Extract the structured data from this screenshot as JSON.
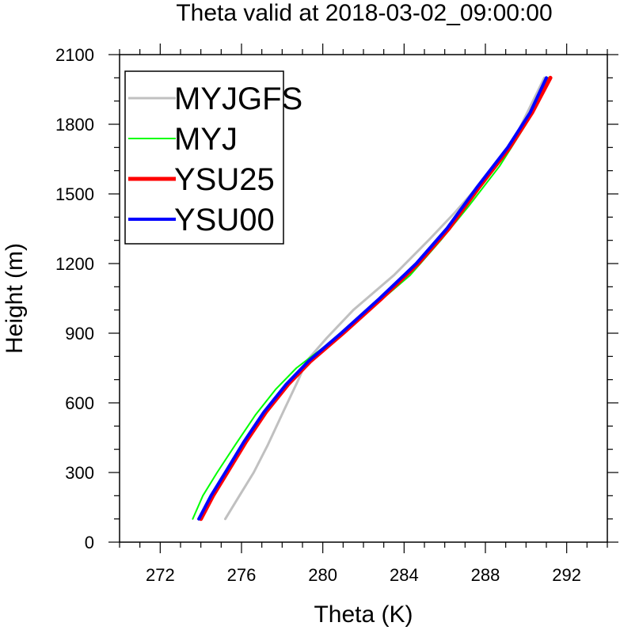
{
  "chart_data": {
    "type": "line",
    "title": "Theta valid at 2018-03-02_09:00:00",
    "xlabel": "Theta (K)",
    "ylabel": "Height (m)",
    "xlim": [
      270,
      294
    ],
    "ylim": [
      0,
      2100
    ],
    "xticks": [
      272,
      276,
      280,
      284,
      288,
      292
    ],
    "yticks": [
      0,
      300,
      600,
      900,
      1200,
      1500,
      1800,
      2100
    ],
    "xtick_labels": [
      "272",
      "276",
      "280",
      "284",
      "288",
      "292"
    ],
    "ytick_labels": [
      "0",
      "300",
      "600",
      "900",
      "1200",
      "1500",
      "1800",
      "2100"
    ],
    "grid": false,
    "legend_position": "top-left",
    "series": [
      {
        "name": "MYJGFS",
        "color": "#c0c0c0",
        "width": 3,
        "points": [
          [
            275.2,
            100
          ],
          [
            275.9,
            200
          ],
          [
            276.6,
            300
          ],
          [
            277.3,
            420
          ],
          [
            278.1,
            570
          ],
          [
            278.8,
            700
          ],
          [
            279.2,
            780
          ],
          [
            280.2,
            880
          ],
          [
            281.5,
            1000
          ],
          [
            283.5,
            1150
          ],
          [
            285.2,
            1300
          ],
          [
            286.5,
            1420
          ],
          [
            288.0,
            1570
          ],
          [
            289.5,
            1750
          ],
          [
            290.9,
            2000
          ]
        ]
      },
      {
        "name": "MYJ",
        "color": "#00ff00",
        "width": 2,
        "points": [
          [
            273.6,
            100
          ],
          [
            274.1,
            200
          ],
          [
            274.8,
            300
          ],
          [
            275.7,
            420
          ],
          [
            276.7,
            550
          ],
          [
            277.7,
            660
          ],
          [
            278.7,
            750
          ],
          [
            280.2,
            850
          ],
          [
            282.3,
            1000
          ],
          [
            284.3,
            1150
          ],
          [
            285.8,
            1300
          ],
          [
            287.2,
            1450
          ],
          [
            288.7,
            1620
          ],
          [
            290.0,
            1800
          ],
          [
            291.1,
            2000
          ]
        ]
      },
      {
        "name": "YSU25",
        "color": "#ff0000",
        "width": 5,
        "points": [
          [
            274.0,
            100
          ],
          [
            274.6,
            200
          ],
          [
            275.3,
            300
          ],
          [
            276.2,
            430
          ],
          [
            277.2,
            560
          ],
          [
            278.3,
            680
          ],
          [
            279.4,
            780
          ],
          [
            281.0,
            900
          ],
          [
            282.9,
            1050
          ],
          [
            284.7,
            1200
          ],
          [
            286.2,
            1350
          ],
          [
            287.7,
            1530
          ],
          [
            289.2,
            1700
          ],
          [
            290.3,
            1850
          ],
          [
            291.2,
            2000
          ]
        ]
      },
      {
        "name": "YSU00",
        "color": "#0000ff",
        "width": 4,
        "points": [
          [
            273.9,
            100
          ],
          [
            274.5,
            200
          ],
          [
            275.2,
            300
          ],
          [
            276.1,
            430
          ],
          [
            277.1,
            560
          ],
          [
            278.2,
            680
          ],
          [
            279.3,
            780
          ],
          [
            280.9,
            900
          ],
          [
            282.8,
            1050
          ],
          [
            284.6,
            1200
          ],
          [
            286.1,
            1350
          ],
          [
            287.6,
            1530
          ],
          [
            289.1,
            1700
          ],
          [
            290.2,
            1850
          ],
          [
            291.0,
            2000
          ]
        ]
      }
    ]
  }
}
